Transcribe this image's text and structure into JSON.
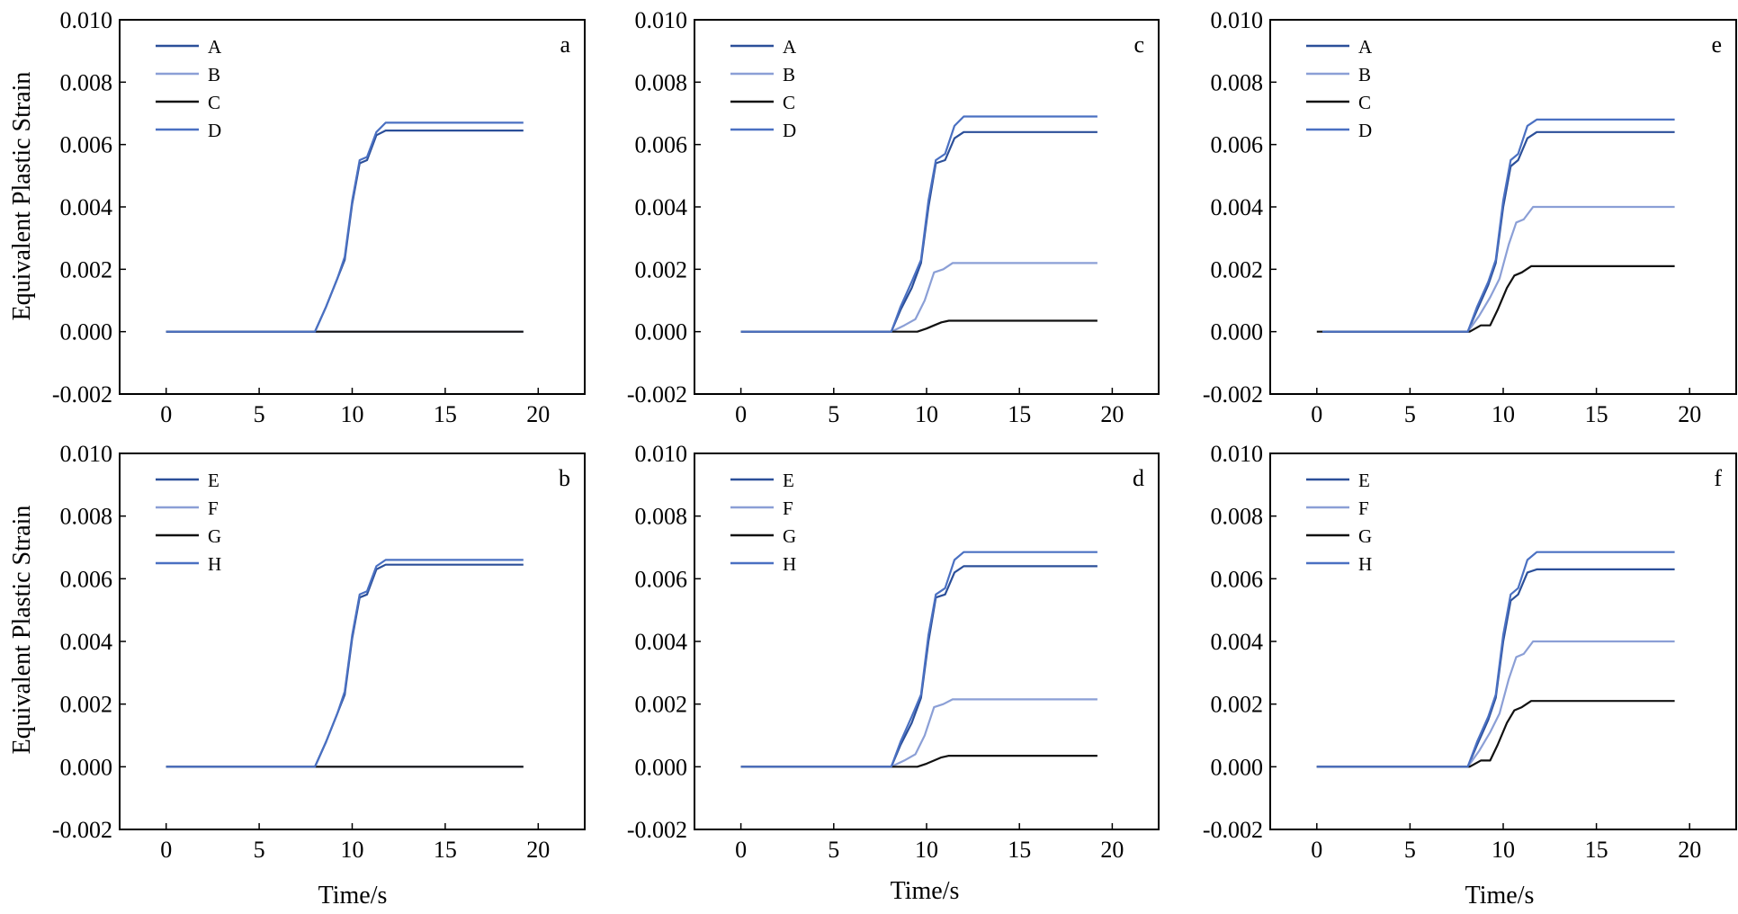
{
  "figure": {
    "y_axis_title": "Equivalent Plastic Strain",
    "x_axis_title": "Time/s"
  },
  "chart_data": [
    {
      "type": "line",
      "panel": "a",
      "xlabel": "",
      "ylabel": "Equivalent Plastic Strain",
      "xlim": [
        -2.5,
        22.5
      ],
      "ylim": [
        -0.002,
        0.01
      ],
      "xticks": [
        "0",
        "5",
        "10",
        "15",
        "20"
      ],
      "yticks": [
        "-0.002",
        "0.000",
        "0.002",
        "0.004",
        "0.006",
        "0.008",
        "0.010"
      ],
      "legend": "top-left",
      "series": [
        {
          "name": "A",
          "color": "#2b4f99",
          "x": [
            0,
            8,
            8.6,
            9.2,
            9.6,
            10.0,
            10.4,
            10.8,
            11.3,
            11.8,
            12.4,
            19.2
          ],
          "y": [
            0,
            0,
            0.0008,
            0.0017,
            0.0023,
            0.0041,
            0.0054,
            0.0055,
            0.0063,
            0.00645,
            0.00645,
            0.00645
          ]
        },
        {
          "name": "B",
          "color": "#8b9fd6",
          "x": [
            0,
            8.1,
            19.2
          ],
          "y": [
            0,
            0,
            0
          ]
        },
        {
          "name": "C",
          "color": "#111111",
          "x": [
            0,
            8.1,
            19.2
          ],
          "y": [
            0,
            0,
            0
          ]
        },
        {
          "name": "D",
          "color": "#4a70c2",
          "x": [
            0,
            8,
            8.6,
            9.2,
            9.6,
            10.0,
            10.4,
            10.8,
            11.3,
            11.8,
            12.4,
            19.2
          ],
          "y": [
            0,
            0,
            0.0008,
            0.0017,
            0.0024,
            0.0042,
            0.0055,
            0.0056,
            0.0064,
            0.0067,
            0.0067,
            0.0067
          ]
        }
      ]
    },
    {
      "type": "line",
      "panel": "b",
      "xlabel": "Time/s",
      "ylabel": "Equivalent Plastic Strain",
      "xlim": [
        -2.5,
        22.5
      ],
      "ylim": [
        -0.002,
        0.01
      ],
      "xticks": [
        "0",
        "5",
        "10",
        "15",
        "20"
      ],
      "yticks": [
        "-0.002",
        "0.000",
        "0.002",
        "0.004",
        "0.006",
        "0.008",
        "0.010"
      ],
      "legend": "top-left",
      "series": [
        {
          "name": "E",
          "color": "#2b4f99",
          "x": [
            0,
            8,
            8.6,
            9.2,
            9.6,
            10.0,
            10.4,
            10.8,
            11.3,
            11.8,
            12.4,
            19.2
          ],
          "y": [
            0,
            0,
            0.0008,
            0.0017,
            0.0023,
            0.0041,
            0.0054,
            0.0055,
            0.0063,
            0.00645,
            0.00645,
            0.00645
          ]
        },
        {
          "name": "F",
          "color": "#8b9fd6",
          "x": [
            0,
            8.1,
            19.2
          ],
          "y": [
            0,
            0,
            0
          ]
        },
        {
          "name": "G",
          "color": "#111111",
          "x": [
            0,
            8.1,
            19.2
          ],
          "y": [
            0,
            0,
            0
          ]
        },
        {
          "name": "H",
          "color": "#4a70c2",
          "x": [
            0,
            8,
            8.6,
            9.2,
            9.6,
            10.0,
            10.4,
            10.8,
            11.3,
            11.8,
            12.4,
            19.2
          ],
          "y": [
            0,
            0,
            0.0008,
            0.0017,
            0.0024,
            0.0042,
            0.0055,
            0.0056,
            0.0064,
            0.0066,
            0.0066,
            0.0066
          ]
        }
      ]
    },
    {
      "type": "line",
      "panel": "c",
      "xlabel": "",
      "ylabel": "",
      "xlim": [
        -2.5,
        22.5
      ],
      "ylim": [
        -0.002,
        0.01
      ],
      "xticks": [
        "0",
        "5",
        "10",
        "15",
        "20"
      ],
      "yticks": [
        "-0.002",
        "0.000",
        "0.002",
        "0.004",
        "0.006",
        "0.008",
        "0.010"
      ],
      "legend": "top-left",
      "series": [
        {
          "name": "A",
          "color": "#2b4f99",
          "x": [
            0,
            8.1,
            8.6,
            9.2,
            9.7,
            10.1,
            10.5,
            11.0,
            11.5,
            12.0,
            19.2
          ],
          "y": [
            0,
            0,
            0.0007,
            0.0014,
            0.0022,
            0.004,
            0.0054,
            0.0055,
            0.0062,
            0.0064,
            0.0064
          ]
        },
        {
          "name": "B",
          "color": "#8b9fd6",
          "x": [
            0,
            8.1,
            8.8,
            9.4,
            9.9,
            10.4,
            10.9,
            11.4,
            12.0,
            19.2
          ],
          "y": [
            0,
            0,
            0.0002,
            0.0004,
            0.001,
            0.0019,
            0.002,
            0.0022,
            0.0022,
            0.0022
          ]
        },
        {
          "name": "C",
          "color": "#111111",
          "x": [
            0,
            8.1,
            9.5,
            10.0,
            10.4,
            10.8,
            11.2,
            11.8,
            19.2
          ],
          "y": [
            0,
            0,
            0,
            0.0001,
            0.0002,
            0.0003,
            0.00035,
            0.00035,
            0.00035
          ]
        },
        {
          "name": "D",
          "color": "#4a70c2",
          "x": [
            0,
            8.1,
            8.6,
            9.2,
            9.7,
            10.1,
            10.5,
            11.0,
            11.5,
            12.0,
            19.2
          ],
          "y": [
            0,
            0,
            0.0008,
            0.0016,
            0.0023,
            0.0042,
            0.0055,
            0.0057,
            0.0066,
            0.0069,
            0.0069
          ]
        }
      ]
    },
    {
      "type": "line",
      "panel": "d",
      "xlabel": "Time/s",
      "ylabel": "",
      "xlim": [
        -2.5,
        22.5
      ],
      "ylim": [
        -0.002,
        0.01
      ],
      "xticks": [
        "0",
        "5",
        "10",
        "15",
        "20"
      ],
      "yticks": [
        "-0.002",
        "0.000",
        "0.002",
        "0.004",
        "0.006",
        "0.008",
        "0.010"
      ],
      "legend": "top-left",
      "series": [
        {
          "name": "E",
          "color": "#2b4f99",
          "x": [
            0,
            8.1,
            8.6,
            9.2,
            9.7,
            10.1,
            10.5,
            11.0,
            11.5,
            12.0,
            19.2
          ],
          "y": [
            0,
            0,
            0.0007,
            0.0014,
            0.0022,
            0.004,
            0.0054,
            0.0055,
            0.0062,
            0.0064,
            0.0064
          ]
        },
        {
          "name": "F",
          "color": "#8b9fd6",
          "x": [
            0,
            8.1,
            8.8,
            9.4,
            9.9,
            10.4,
            10.9,
            11.4,
            12.0,
            19.2
          ],
          "y": [
            0,
            0,
            0.0002,
            0.0004,
            0.001,
            0.0019,
            0.002,
            0.00215,
            0.00215,
            0.00215
          ]
        },
        {
          "name": "G",
          "color": "#111111",
          "x": [
            0,
            8.1,
            9.5,
            10.0,
            10.4,
            10.8,
            11.2,
            11.8,
            19.2
          ],
          "y": [
            0,
            0,
            0,
            0.0001,
            0.0002,
            0.0003,
            0.00035,
            0.00035,
            0.00035
          ]
        },
        {
          "name": "H",
          "color": "#4a70c2",
          "x": [
            0,
            8.1,
            8.6,
            9.2,
            9.7,
            10.1,
            10.5,
            11.0,
            11.5,
            12.0,
            19.2
          ],
          "y": [
            0,
            0,
            0.0008,
            0.0016,
            0.0023,
            0.0042,
            0.0055,
            0.0057,
            0.0066,
            0.00685,
            0.00685
          ]
        }
      ]
    },
    {
      "type": "line",
      "panel": "e",
      "xlabel": "",
      "ylabel": "",
      "xlim": [
        -2.5,
        22.5
      ],
      "ylim": [
        -0.002,
        0.01
      ],
      "xticks": [
        "0",
        "5",
        "10",
        "15",
        "20"
      ],
      "yticks": [
        "-0.002",
        "0.000",
        "0.002",
        "0.004",
        "0.006",
        "0.008",
        "0.010"
      ],
      "legend": "top-left",
      "series": [
        {
          "name": "A",
          "color": "#2b4f99",
          "x": [
            0.3,
            8.1,
            8.6,
            9.2,
            9.6,
            10.0,
            10.4,
            10.8,
            11.3,
            11.8,
            19.2
          ],
          "y": [
            0,
            0,
            0.0007,
            0.0015,
            0.0022,
            0.004,
            0.0053,
            0.0055,
            0.0062,
            0.0064,
            0.0064
          ]
        },
        {
          "name": "B",
          "color": "#8b9fd6",
          "x": [
            0.3,
            8.1,
            8.7,
            9.3,
            9.8,
            10.3,
            10.7,
            11.1,
            11.6,
            19.2
          ],
          "y": [
            0,
            0,
            0.0005,
            0.0011,
            0.0017,
            0.0028,
            0.0035,
            0.0036,
            0.004,
            0.004
          ]
        },
        {
          "name": "C",
          "color": "#111111",
          "x": [
            0,
            8.2,
            8.8,
            9.3,
            9.7,
            10.2,
            10.6,
            11.0,
            11.5,
            19.2
          ],
          "y": [
            0,
            0,
            0.0002,
            0.0002,
            0.0007,
            0.0014,
            0.0018,
            0.0019,
            0.0021,
            0.0021
          ]
        },
        {
          "name": "D",
          "color": "#4a70c2",
          "x": [
            0.3,
            8.1,
            8.6,
            9.2,
            9.6,
            10.0,
            10.4,
            10.8,
            11.3,
            11.8,
            19.2
          ],
          "y": [
            0,
            0,
            0.0008,
            0.0016,
            0.0023,
            0.0042,
            0.0055,
            0.0057,
            0.0066,
            0.0068,
            0.0068
          ]
        }
      ]
    },
    {
      "type": "line",
      "panel": "f",
      "xlabel": "Time/s",
      "ylabel": "",
      "xlim": [
        -2.5,
        22.5
      ],
      "ylim": [
        -0.002,
        0.01
      ],
      "xticks": [
        "0",
        "5",
        "10",
        "15",
        "20"
      ],
      "yticks": [
        "-0.002",
        "0.000",
        "0.002",
        "0.004",
        "0.006",
        "0.008",
        "0.010"
      ],
      "legend": "top-left",
      "series": [
        {
          "name": "E",
          "color": "#2b4f99",
          "x": [
            0,
            8.1,
            8.6,
            9.2,
            9.6,
            10.0,
            10.4,
            10.8,
            11.3,
            11.8,
            19.2
          ],
          "y": [
            0,
            0,
            0.0007,
            0.0015,
            0.0022,
            0.004,
            0.0053,
            0.0055,
            0.0062,
            0.0063,
            0.0063
          ]
        },
        {
          "name": "F",
          "color": "#8b9fd6",
          "x": [
            0,
            8.1,
            8.7,
            9.3,
            9.8,
            10.3,
            10.7,
            11.1,
            11.6,
            19.2
          ],
          "y": [
            0,
            0,
            0.0005,
            0.0011,
            0.0017,
            0.0028,
            0.0035,
            0.0036,
            0.004,
            0.004
          ]
        },
        {
          "name": "G",
          "color": "#111111",
          "x": [
            0,
            8.2,
            8.8,
            9.3,
            9.7,
            10.2,
            10.6,
            11.0,
            11.5,
            19.2
          ],
          "y": [
            0,
            0,
            0.0002,
            0.0002,
            0.0007,
            0.0014,
            0.0018,
            0.0019,
            0.0021,
            0.0021
          ]
        },
        {
          "name": "H",
          "color": "#4a70c2",
          "x": [
            0,
            8.1,
            8.6,
            9.2,
            9.6,
            10.0,
            10.4,
            10.8,
            11.3,
            11.8,
            19.2
          ],
          "y": [
            0,
            0,
            0.0008,
            0.0016,
            0.0023,
            0.0042,
            0.0055,
            0.0057,
            0.0066,
            0.00685,
            0.00685
          ]
        }
      ]
    }
  ]
}
